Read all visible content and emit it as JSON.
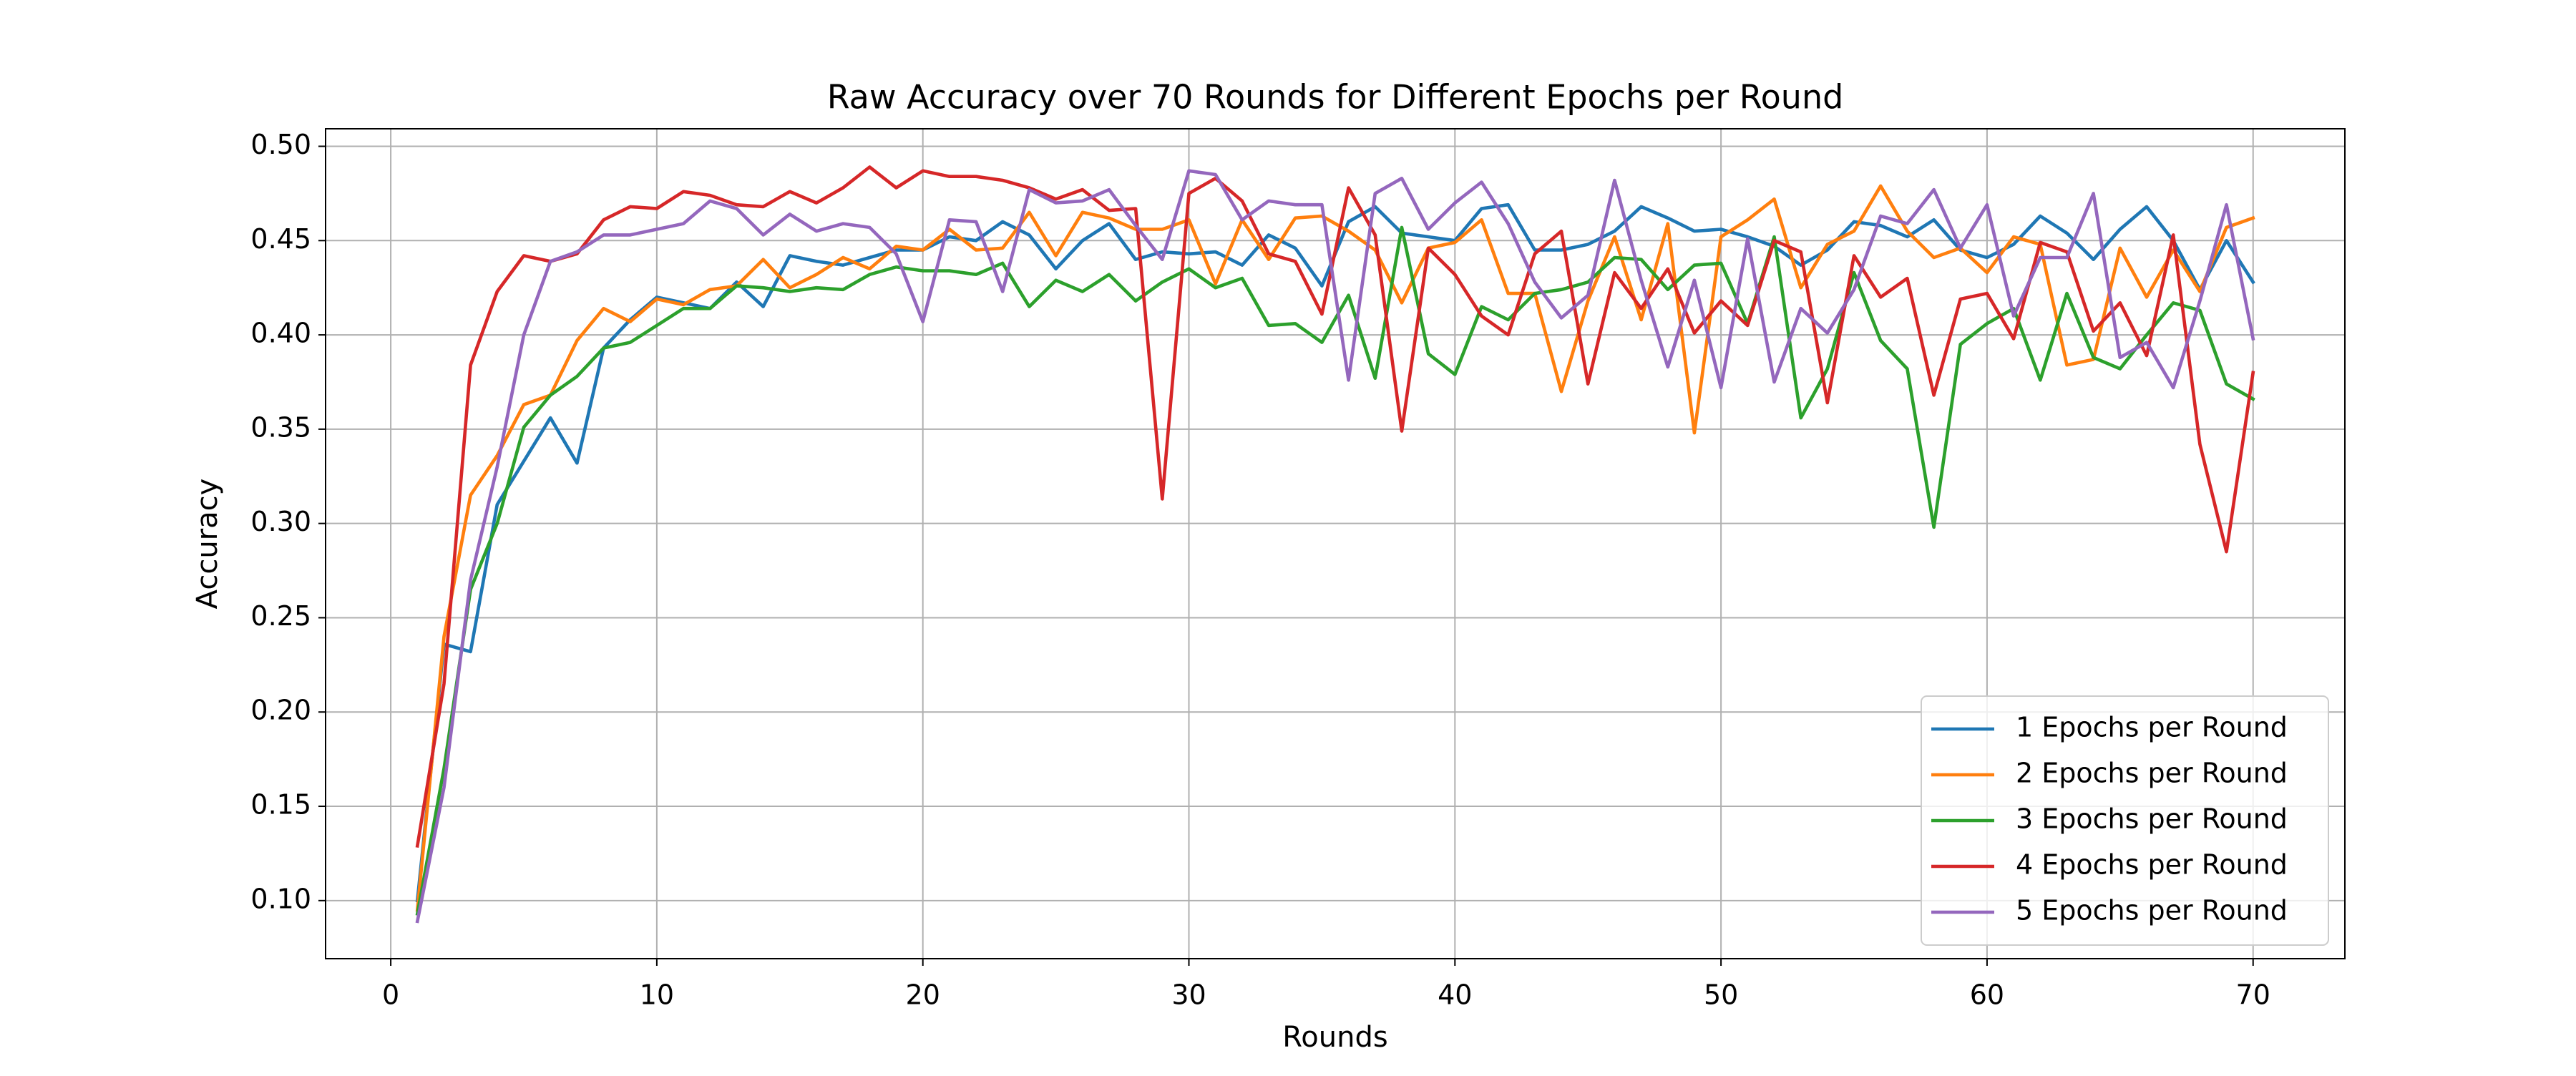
{
  "chart_data": {
    "type": "line",
    "title": "Raw Accuracy over 70 Rounds for Different Epochs per Round",
    "x_label": "Rounds",
    "y_label": "Accuracy",
    "x": [
      1,
      2,
      3,
      4,
      5,
      6,
      7,
      8,
      9,
      10,
      11,
      12,
      13,
      14,
      15,
      16,
      17,
      18,
      19,
      20,
      21,
      22,
      23,
      24,
      25,
      26,
      27,
      28,
      29,
      30,
      31,
      32,
      33,
      34,
      35,
      36,
      37,
      38,
      39,
      40,
      41,
      42,
      43,
      44,
      45,
      46,
      47,
      48,
      49,
      50,
      51,
      52,
      53,
      54,
      55,
      56,
      57,
      58,
      59,
      60,
      61,
      62,
      63,
      64,
      65,
      66,
      67,
      68,
      69,
      70
    ],
    "series": [
      {
        "name": "1 Epochs per Round",
        "color": "#1f77b4",
        "values": [
          0.1,
          0.236,
          0.232,
          0.31,
          0.333,
          0.356,
          0.332,
          0.393,
          0.408,
          0.42,
          0.417,
          0.414,
          0.428,
          0.415,
          0.442,
          0.439,
          0.437,
          0.441,
          0.445,
          0.445,
          0.452,
          0.45,
          0.46,
          0.453,
          0.435,
          0.45,
          0.459,
          0.44,
          0.444,
          0.443,
          0.444,
          0.437,
          0.453,
          0.446,
          0.426,
          0.46,
          0.468,
          0.454,
          0.452,
          0.45,
          0.467,
          0.469,
          0.445,
          0.445,
          0.448,
          0.455,
          0.468,
          0.462,
          0.455,
          0.456,
          0.452,
          0.447,
          0.437,
          0.445,
          0.46,
          0.458,
          0.452,
          0.461,
          0.445,
          0.441,
          0.448,
          0.463,
          0.454,
          0.44,
          0.456,
          0.468,
          0.45,
          0.424,
          0.45,
          0.428
        ]
      },
      {
        "name": "2 Epochs per Round",
        "color": "#ff7f0e",
        "values": [
          0.095,
          0.24,
          0.315,
          0.336,
          0.363,
          0.368,
          0.397,
          0.414,
          0.407,
          0.419,
          0.416,
          0.424,
          0.426,
          0.44,
          0.425,
          0.432,
          0.441,
          0.435,
          0.447,
          0.445,
          0.456,
          0.445,
          0.446,
          0.465,
          0.442,
          0.465,
          0.462,
          0.456,
          0.456,
          0.461,
          0.427,
          0.461,
          0.44,
          0.462,
          0.463,
          0.455,
          0.445,
          0.417,
          0.446,
          0.449,
          0.461,
          0.422,
          0.422,
          0.37,
          0.418,
          0.452,
          0.408,
          0.459,
          0.348,
          0.452,
          0.461,
          0.472,
          0.425,
          0.448,
          0.455,
          0.479,
          0.455,
          0.441,
          0.446,
          0.433,
          0.452,
          0.448,
          0.384,
          0.387,
          0.446,
          0.42,
          0.445,
          0.423,
          0.457,
          0.462
        ]
      },
      {
        "name": "3 Epochs per Round",
        "color": "#2ca02c",
        "values": [
          0.093,
          0.17,
          0.265,
          0.3,
          0.351,
          0.368,
          0.378,
          0.393,
          0.396,
          0.405,
          0.414,
          0.414,
          0.426,
          0.425,
          0.423,
          0.425,
          0.424,
          0.432,
          0.436,
          0.434,
          0.434,
          0.432,
          0.438,
          0.415,
          0.429,
          0.423,
          0.432,
          0.418,
          0.428,
          0.435,
          0.425,
          0.43,
          0.405,
          0.406,
          0.396,
          0.421,
          0.377,
          0.457,
          0.39,
          0.379,
          0.415,
          0.408,
          0.422,
          0.424,
          0.428,
          0.441,
          0.44,
          0.424,
          0.437,
          0.438,
          0.406,
          0.452,
          0.356,
          0.382,
          0.433,
          0.397,
          0.382,
          0.298,
          0.395,
          0.406,
          0.414,
          0.376,
          0.422,
          0.388,
          0.382,
          0.4,
          0.417,
          0.413,
          0.374,
          0.366
        ]
      },
      {
        "name": "4 Epochs per Round",
        "color": "#d62728",
        "values": [
          0.129,
          0.215,
          0.384,
          0.423,
          0.442,
          0.439,
          0.443,
          0.461,
          0.468,
          0.467,
          0.476,
          0.474,
          0.469,
          0.468,
          0.476,
          0.47,
          0.478,
          0.489,
          0.478,
          0.487,
          0.484,
          0.484,
          0.482,
          0.478,
          0.472,
          0.477,
          0.466,
          0.467,
          0.313,
          0.475,
          0.483,
          0.471,
          0.443,
          0.439,
          0.411,
          0.478,
          0.453,
          0.349,
          0.446,
          0.432,
          0.41,
          0.4,
          0.443,
          0.455,
          0.374,
          0.433,
          0.414,
          0.435,
          0.401,
          0.418,
          0.405,
          0.45,
          0.444,
          0.364,
          0.442,
          0.42,
          0.43,
          0.368,
          0.419,
          0.422,
          0.398,
          0.449,
          0.444,
          0.402,
          0.417,
          0.389,
          0.453,
          0.342,
          0.285,
          0.38
        ]
      },
      {
        "name": "5 Epochs per Round",
        "color": "#9467bd",
        "values": [
          0.089,
          0.16,
          0.27,
          0.33,
          0.4,
          0.439,
          0.444,
          0.453,
          0.453,
          0.456,
          0.459,
          0.471,
          0.467,
          0.453,
          0.464,
          0.455,
          0.459,
          0.457,
          0.443,
          0.407,
          0.461,
          0.46,
          0.423,
          0.477,
          0.47,
          0.471,
          0.477,
          0.458,
          0.44,
          0.487,
          0.485,
          0.461,
          0.471,
          0.469,
          0.469,
          0.376,
          0.475,
          0.483,
          0.456,
          0.47,
          0.481,
          0.459,
          0.428,
          0.409,
          0.421,
          0.482,
          0.429,
          0.383,
          0.429,
          0.372,
          0.451,
          0.375,
          0.414,
          0.401,
          0.424,
          0.463,
          0.459,
          0.477,
          0.446,
          0.469,
          0.41,
          0.441,
          0.441,
          0.475,
          0.388,
          0.396,
          0.372,
          0.418,
          0.469,
          0.398
        ]
      }
    ],
    "xlim": [
      -2.45,
      73.45
    ],
    "xticks": [
      0,
      10,
      20,
      30,
      40,
      50,
      60,
      70
    ],
    "ylim": [
      0.0692,
      0.5093
    ],
    "yticks": [
      {
        "value": 0.1,
        "label": "0.10"
      },
      0.15,
      {
        "value": 0.2,
        "label": "0.20"
      },
      0.25,
      {
        "value": 0.3,
        "label": "0.30"
      },
      0.35,
      {
        "value": 0.4,
        "label": "0.40"
      },
      0.45,
      {
        "value": 0.5,
        "label": "0.50"
      }
    ],
    "grid": true,
    "legend_loc": "lower right"
  }
}
